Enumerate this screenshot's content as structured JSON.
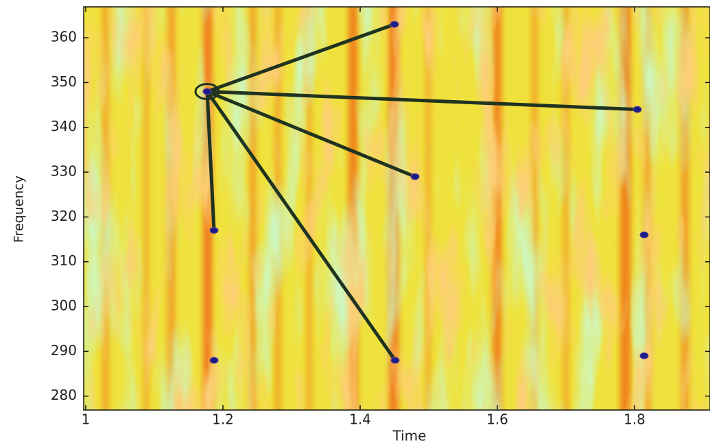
{
  "chart_data": {
    "type": "scatter",
    "xlabel": "Time",
    "ylabel": "Frequency",
    "xlim": [
      0.997,
      1.91
    ],
    "ylim": [
      276.9,
      366.9
    ],
    "xticks": [
      1,
      1.2,
      1.4,
      1.6,
      1.8
    ],
    "yticks": [
      280,
      290,
      300,
      310,
      320,
      330,
      340,
      350,
      360
    ],
    "series": [
      {
        "type": "scatter",
        "color": "#1c1c8a",
        "x": [
          1.177,
          1.45,
          1.804,
          1.48,
          1.187,
          1.451,
          1.187,
          1.814,
          1.814
        ],
        "values": [
          348,
          363,
          344,
          329,
          317,
          288,
          288,
          316,
          289
        ]
      },
      {
        "type": "line",
        "color": "#1f3320",
        "x": [
          1.177,
          1.45
        ],
        "values": [
          348,
          363
        ]
      },
      {
        "type": "line",
        "color": "#1f3320",
        "x": [
          1.177,
          1.804
        ],
        "values": [
          348,
          344
        ]
      },
      {
        "type": "line",
        "color": "#1f3320",
        "x": [
          1.177,
          1.48
        ],
        "values": [
          348,
          329
        ]
      },
      {
        "type": "line",
        "color": "#1f3320",
        "x": [
          1.177,
          1.187
        ],
        "values": [
          348,
          317
        ]
      },
      {
        "type": "line",
        "color": "#1f3320",
        "x": [
          1.177,
          1.451
        ],
        "values": [
          348,
          288
        ]
      }
    ]
  }
}
